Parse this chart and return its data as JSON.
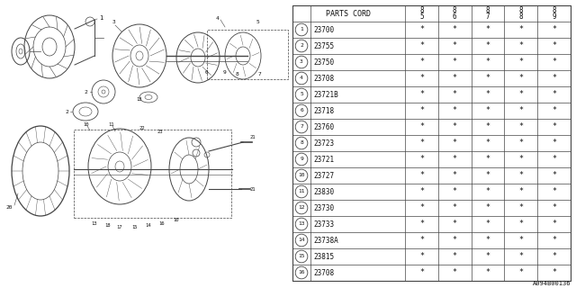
{
  "parts": [
    {
      "num": "1",
      "code": "23700"
    },
    {
      "num": "2",
      "code": "23755"
    },
    {
      "num": "3",
      "code": "23750"
    },
    {
      "num": "4",
      "code": "23708"
    },
    {
      "num": "5",
      "code": "23721B"
    },
    {
      "num": "6",
      "code": "23718"
    },
    {
      "num": "7",
      "code": "23760"
    },
    {
      "num": "8",
      "code": "23723"
    },
    {
      "num": "9",
      "code": "23721"
    },
    {
      "num": "10",
      "code": "23727"
    },
    {
      "num": "11",
      "code": "23830"
    },
    {
      "num": "12",
      "code": "23730"
    },
    {
      "num": "13",
      "code": "23733"
    },
    {
      "num": "14",
      "code": "23738A"
    },
    {
      "num": "15",
      "code": "23815"
    },
    {
      "num": "16",
      "code": "23708"
    }
  ],
  "col_headers": [
    "85",
    "86",
    "87",
    "88",
    "89"
  ],
  "bg_color": "#ffffff",
  "line_color": "#444444",
  "text_color": "#111111",
  "footer_text": "A094B00136",
  "header_label": "PARTS CORD"
}
